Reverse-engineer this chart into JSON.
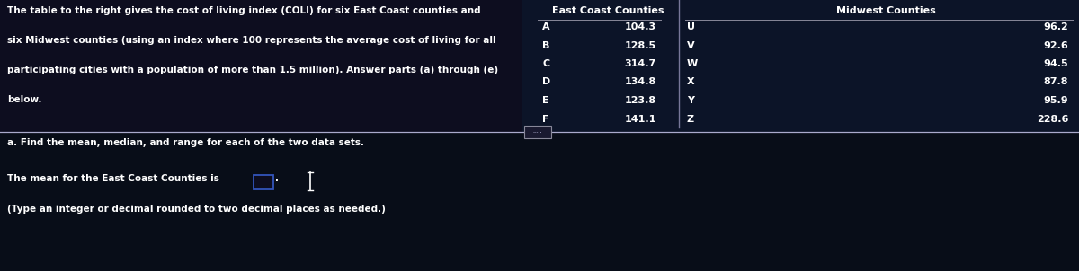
{
  "bg_color_top": "#0d0d1f",
  "bg_color_bottom": "#0a0f1e",
  "text_color": "#ffffff",
  "desc_line1": "The table to the right gives the cost of living index (COLI) for six East Coast counties and",
  "desc_line2": "six Midwest counties (using an index where 100 represents the average cost of living for all",
  "desc_line3": "participating cities with a population of more than 1.5 million). Answer parts (a) through (e)",
  "desc_line4": "below.",
  "table_header_east": "East Coast Counties",
  "table_header_midwest": "Midwest Counties",
  "row_labels_left": [
    "A",
    "B",
    "C",
    "D",
    "E",
    "F"
  ],
  "row_labels_right": [
    "U",
    "V",
    "W",
    "X",
    "Y",
    "Z"
  ],
  "east_values": [
    "104.3",
    "128.5",
    "314.7",
    "134.8",
    "123.8",
    "141.1"
  ],
  "midwest_values": [
    "96.2",
    "92.6",
    "94.5",
    "87.8",
    "95.9",
    "228.6"
  ],
  "bottom_text_a": "a. Find the mean, median, and range for each of the two data sets.",
  "bottom_text_b": "The mean for the East Coast Counties is",
  "bottom_text_c": "(Type an integer or decimal rounded to two decimal places as needed.)",
  "table_bg_east": "#0d1530",
  "table_bg_midwest": "#0d1530",
  "divider_color": "#aaaacc",
  "header_line_color": "#888899",
  "input_box_edge": "#3355bb",
  "separator_color": "#777799"
}
